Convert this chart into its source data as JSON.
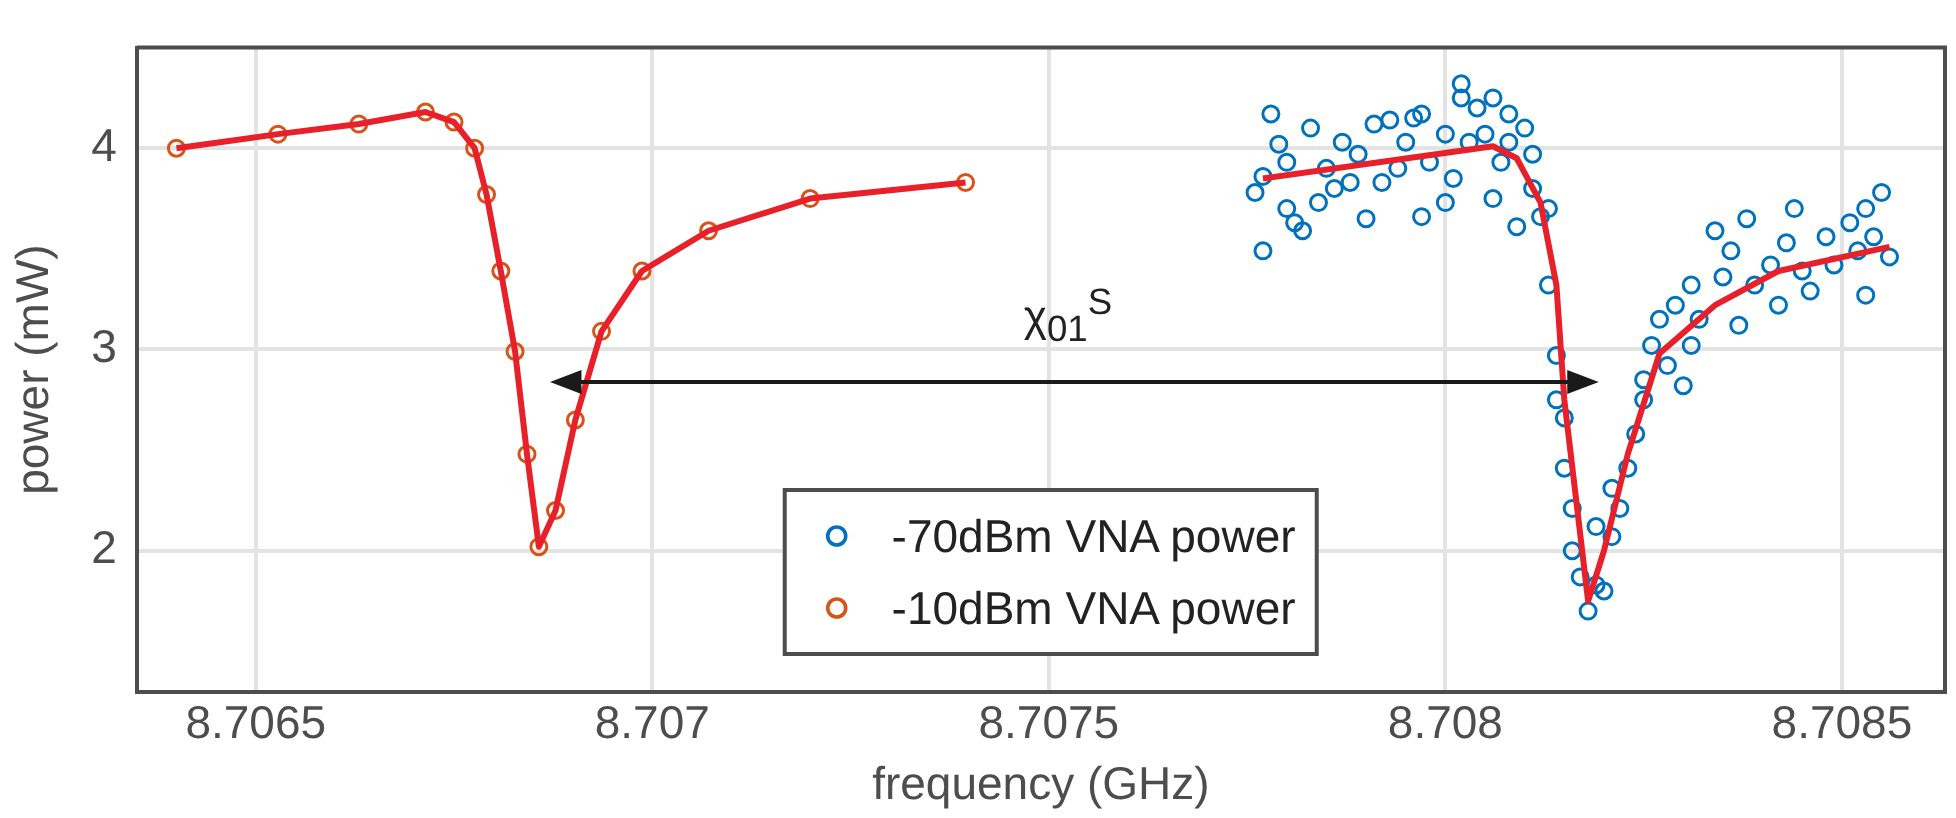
{
  "chart_data": {
    "type": "scatter",
    "xlabel": "frequency (GHz)",
    "ylabel": "power (mW)",
    "xlim": [
      8.70635,
      8.70863
    ],
    "ylim": [
      1.3,
      4.5
    ],
    "xticks": [
      8.7065,
      8.707,
      8.7075,
      8.708,
      8.7085
    ],
    "yticks": [
      2,
      3,
      4
    ],
    "grid": true,
    "legend": "bottom",
    "marker": "circle",
    "annotations": [
      "χ$_{01}$$^{S}$"
    ],
    "series": [
      {
        "name": "-70dBm VNA power",
        "color": "#0072bd",
        "x": [
          8.70777,
          8.70776,
          8.70777,
          8.70778,
          8.70779,
          8.7078,
          8.7078,
          8.70781,
          8.70782,
          8.70783,
          8.70784,
          8.70785,
          8.70786,
          8.70787,
          8.70788,
          8.70789,
          8.7079,
          8.70791,
          8.70792,
          8.70793,
          8.70794,
          8.70795,
          8.70796,
          8.70797,
          8.70797,
          8.70798,
          8.708,
          8.708,
          8.70801,
          8.70802,
          8.70802,
          8.70803,
          8.70804,
          8.70805,
          8.70806,
          8.70806,
          8.70807,
          8.70808,
          8.70808,
          8.70809,
          8.7081,
          8.70811,
          8.70811,
          8.70812,
          8.70813,
          8.70813,
          8.70814,
          8.70814,
          8.70815,
          8.70815,
          8.70816,
          8.70816,
          8.70817,
          8.70818,
          8.70819,
          8.70819,
          8.7082,
          8.70821,
          8.70821,
          8.70822,
          8.70823,
          8.70824,
          8.70825,
          8.70825,
          8.70826,
          8.70827,
          8.70828,
          8.70829,
          8.7083,
          8.70831,
          8.70831,
          8.70832,
          8.70834,
          8.70835,
          8.70836,
          8.70837,
          8.70838,
          8.70839,
          8.70841,
          8.70842,
          8.70843,
          8.70844,
          8.70845,
          8.70846,
          8.70848,
          8.70849,
          8.70851,
          8.70852,
          8.70853,
          8.70853,
          8.70854,
          8.70855,
          8.70856
        ],
        "values": [
          3.49,
          3.78,
          3.86,
          4.17,
          4.02,
          3.7,
          3.93,
          3.63,
          3.59,
          4.1,
          3.73,
          3.9,
          3.8,
          4.03,
          3.83,
          3.97,
          3.65,
          4.12,
          3.83,
          4.14,
          3.9,
          4.03,
          4.15,
          3.66,
          4.17,
          3.93,
          3.73,
          4.07,
          3.85,
          4.32,
          4.25,
          4.03,
          4.2,
          4.07,
          4.25,
          3.75,
          3.93,
          4.17,
          4.03,
          3.61,
          4.1,
          3.97,
          3.8,
          3.66,
          3.7,
          3.32,
          2.97,
          2.75,
          2.66,
          2.41,
          2.21,
          2.0,
          1.87,
          1.7,
          1.83,
          2.12,
          1.8,
          2.07,
          2.31,
          2.21,
          2.41,
          2.58,
          2.75,
          2.85,
          3.02,
          3.15,
          2.92,
          3.22,
          2.82,
          3.02,
          3.32,
          3.15,
          3.59,
          3.36,
          3.49,
          3.12,
          3.65,
          3.32,
          3.42,
          3.22,
          3.53,
          3.7,
          3.39,
          3.29,
          3.56,
          3.42,
          3.63,
          3.49,
          3.7,
          3.27,
          3.56,
          3.78,
          3.46
        ]
      },
      {
        "name": "-10dBm VNA power",
        "color": "#d95319",
        "x": [
          8.7064,
          8.706528,
          8.70663,
          8.706714,
          8.70675,
          8.706776,
          8.706791,
          8.706809,
          8.706827,
          8.706842,
          8.706857,
          8.706878,
          8.706903,
          8.706936,
          8.706987,
          8.707071,
          8.707199,
          8.707395
        ],
        "values": [
          4.0,
          4.07,
          4.12,
          4.18,
          4.13,
          4.0,
          3.77,
          3.39,
          2.99,
          2.48,
          2.02,
          2.2,
          2.65,
          3.09,
          3.39,
          3.59,
          3.75,
          3.83
        ]
      },
      {
        "color": "#e8202a",
        "type": "line",
        "marker": "none",
        "x": [
          8.7064,
          8.706528,
          8.70663,
          8.706714,
          8.70675,
          8.706776,
          8.706791,
          8.706809,
          8.706827,
          8.706842,
          8.706857,
          8.706878,
          8.706903,
          8.706936,
          8.706987,
          8.707071,
          8.707199,
          8.707395
        ],
        "values": [
          4.0,
          4.07,
          4.12,
          4.18,
          4.13,
          4.0,
          3.77,
          3.39,
          2.99,
          2.48,
          2.02,
          2.2,
          2.65,
          3.09,
          3.39,
          3.59,
          3.75,
          3.83
        ]
      },
      {
        "color": "#e8202a",
        "type": "line",
        "marker": "none",
        "x": [
          8.70777,
          8.70806,
          8.70809,
          8.70812,
          8.70814,
          8.70815,
          8.70818,
          8.7082,
          8.70823,
          8.70827,
          8.70834,
          8.70842,
          8.70856
        ],
        "values": [
          3.85,
          4.01,
          3.95,
          3.73,
          3.32,
          2.75,
          1.75,
          2.0,
          2.48,
          2.98,
          3.22,
          3.39,
          3.51
        ]
      }
    ]
  }
}
